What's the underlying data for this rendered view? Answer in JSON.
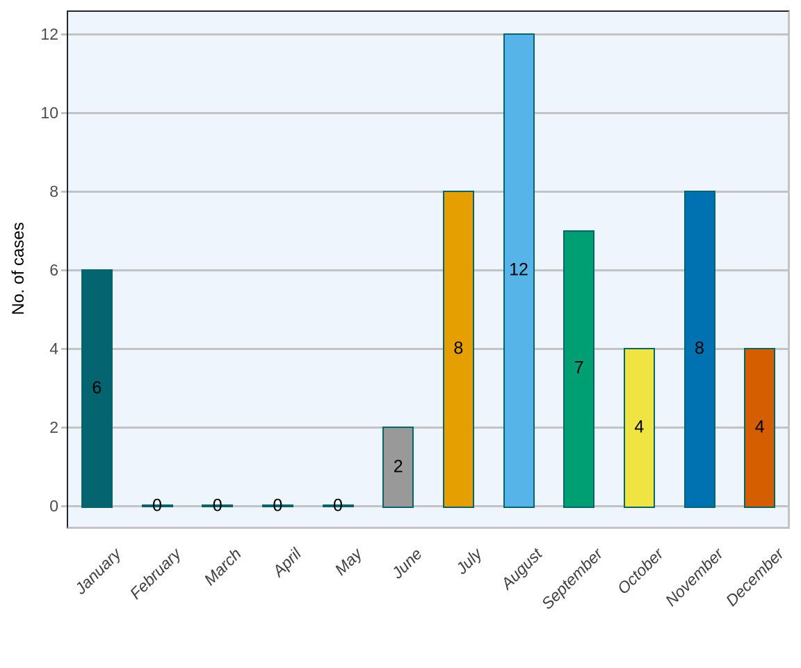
{
  "chart_data": {
    "type": "bar",
    "title": "",
    "xlabel": "",
    "ylabel": "No. of cases",
    "categories": [
      "January",
      "February",
      "March",
      "April",
      "May",
      "June",
      "July",
      "August",
      "September",
      "October",
      "November",
      "December"
    ],
    "values": [
      6,
      0,
      0,
      0,
      0,
      2,
      8,
      12,
      7,
      4,
      8,
      4
    ],
    "value_labels": [
      "6",
      "0",
      "0",
      "0",
      "0",
      "2",
      "8",
      "12",
      "7",
      "4",
      "8",
      "4"
    ],
    "yticks": [
      "0",
      "2",
      "4",
      "6",
      "8",
      "10",
      "12"
    ],
    "ylim": [
      -0.6,
      12.6
    ],
    "grid": "horizontal-major-only",
    "legend_position": "none",
    "bar_colors": [
      "#046570",
      "#046570",
      "#046570",
      "#046570",
      "#046570",
      "#999999",
      "#E69F00",
      "#56B4E9",
      "#009E73",
      "#F0E442",
      "#0072B2",
      "#D55E00"
    ],
    "bar_border_color": "#046570",
    "colors": {
      "panel_background": "#EFF5FC",
      "gridline": "#C3C3C3",
      "axis_tick_text": "#4D4D4D",
      "x_label_text": "#404040",
      "value_label_text": "#000000",
      "panel_border_dark": "#262626",
      "panel_border_light": "#C3C3C3"
    }
  }
}
